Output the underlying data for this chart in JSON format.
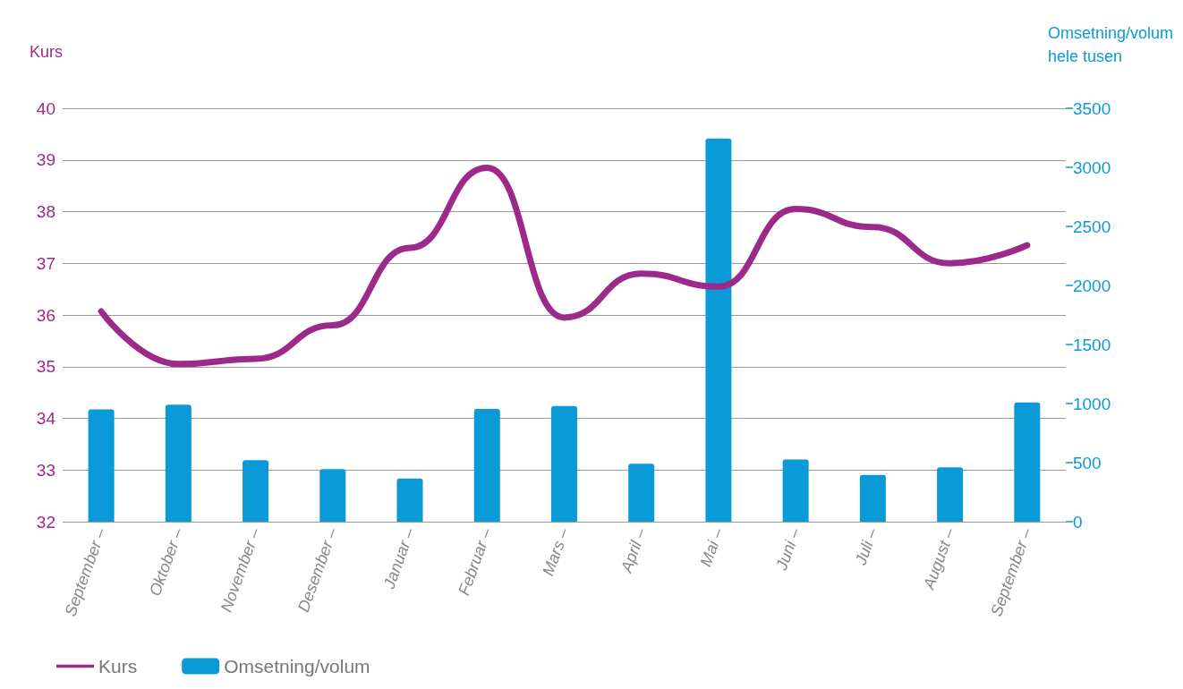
{
  "chart_data": {
    "type": "bar",
    "ylabel": "Kurs",
    "y2label": "Omsetning/volum\nhele tusen",
    "categories": [
      "September –",
      "Oktober –",
      "November –",
      "Desember –",
      "Januar –",
      "Februar –",
      "Mars –",
      "April –",
      "Mai –",
      "Juni –",
      "Juli –",
      "August –",
      "September –"
    ],
    "series": [
      {
        "name": "Kurs",
        "type": "line",
        "color": "#9b2a8a",
        "values": [
          36.07,
          35.05,
          35.15,
          35.8,
          37.3,
          38.85,
          35.95,
          36.8,
          36.55,
          38.05,
          37.7,
          37.0,
          37.35
        ]
      },
      {
        "name": "Omsetning/volum",
        "axis": "y2",
        "color": "#0a9ad7",
        "values": [
          950,
          990,
          520,
          445,
          365,
          955,
          980,
          490,
          3245,
          526,
          395,
          460,
          1010
        ]
      }
    ],
    "ylim": [
      32,
      40
    ],
    "yticks": [
      32,
      33,
      34,
      35,
      36,
      37,
      38,
      39,
      40
    ],
    "y2lim": [
      0,
      3500
    ],
    "y2ticks": [
      0,
      500,
      1000,
      1500,
      2000,
      2500,
      3000,
      3500
    ],
    "grid": "y",
    "legend": "bottom left",
    "line_style": "solid",
    "marker": "none"
  }
}
